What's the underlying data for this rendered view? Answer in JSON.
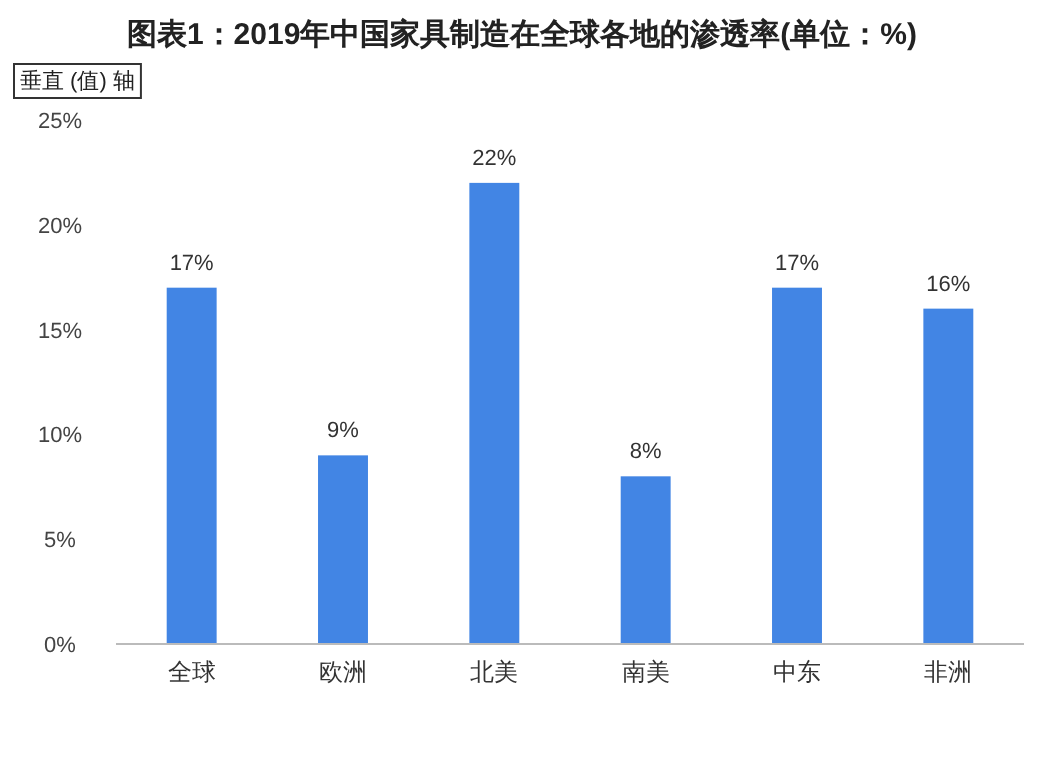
{
  "chart_data": {
    "type": "bar",
    "title": "图表1：2019年中国家具制造在全球各地的渗透率(单位：%)",
    "ylabel": "垂直 (值) 轴",
    "categories": [
      "全球",
      "欧洲",
      "北美",
      "南美",
      "中东",
      "非洲"
    ],
    "values": [
      17,
      9,
      22,
      8,
      17,
      16
    ],
    "value_labels": [
      "17%",
      "9%",
      "22%",
      "8%",
      "17%",
      "16%"
    ],
    "color": "#4285e4",
    "ylim": [
      0,
      25
    ],
    "yticks": [
      {
        "value": 0,
        "label": "0%"
      },
      {
        "value": 5,
        "label": "5%"
      },
      {
        "value": 10,
        "label": "10%"
      },
      {
        "value": 15,
        "label": "15%"
      },
      {
        "value": 20,
        "label": "20%"
      },
      {
        "value": 25,
        "label": "25%"
      }
    ],
    "grid": false
  }
}
